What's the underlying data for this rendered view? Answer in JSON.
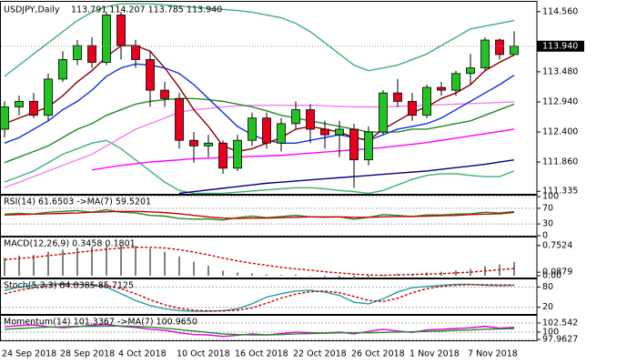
{
  "chart_data": [
    {
      "type": "candlestick",
      "title": "USDJPY,Daily",
      "ohlc_label": "113.791 114.207 113.785 113.940",
      "up_color": "#22c322",
      "down_color": "#e8001c",
      "categories": [
        "24 Sep 2018",
        null,
        null,
        null,
        "28 Sep 2018",
        null,
        null,
        null,
        "4 Oct 2018",
        null,
        null,
        null,
        "10 Oct 2018",
        null,
        null,
        null,
        "16 Oct 2018",
        null,
        null,
        null,
        "22 Oct 2018",
        null,
        null,
        null,
        "26 Oct 2018",
        null,
        null,
        null,
        "1 Nov 2018",
        null,
        null,
        null,
        "7 Nov 2018",
        null,
        null,
        null
      ],
      "values": [
        [
          112.45,
          112.95,
          112.3,
          112.85
        ],
        [
          112.85,
          113.05,
          112.7,
          112.95
        ],
        [
          112.95,
          113.1,
          112.65,
          112.7
        ],
        [
          112.7,
          113.45,
          112.6,
          113.35
        ],
        [
          113.35,
          113.85,
          113.3,
          113.7
        ],
        [
          113.7,
          114.05,
          113.6,
          113.95
        ],
        [
          113.95,
          114.1,
          113.55,
          113.65
        ],
        [
          113.65,
          114.55,
          113.6,
          114.5
        ],
        [
          114.5,
          114.55,
          113.7,
          113.95
        ],
        [
          113.95,
          114.05,
          113.55,
          113.7
        ],
        [
          113.7,
          113.85,
          112.85,
          113.15
        ],
        [
          113.15,
          113.3,
          112.85,
          113.0
        ],
        [
          113.0,
          113.1,
          112.1,
          112.25
        ],
        [
          112.25,
          112.4,
          111.85,
          112.15
        ],
        [
          112.15,
          112.35,
          111.95,
          112.2
        ],
        [
          112.2,
          112.25,
          111.65,
          111.75
        ],
        [
          111.75,
          112.35,
          111.7,
          112.25
        ],
        [
          112.25,
          112.75,
          112.15,
          112.65
        ],
        [
          112.65,
          112.75,
          112.1,
          112.2
        ],
        [
          112.2,
          112.65,
          112.05,
          112.55
        ],
        [
          112.55,
          112.95,
          112.45,
          112.8
        ],
        [
          112.8,
          112.9,
          112.2,
          112.45
        ],
        [
          112.45,
          112.6,
          112.1,
          112.35
        ],
        [
          112.35,
          112.6,
          111.95,
          112.45
        ],
        [
          112.45,
          112.55,
          111.4,
          111.9
        ],
        [
          111.9,
          112.5,
          111.8,
          112.4
        ],
        [
          112.4,
          113.15,
          112.35,
          113.1
        ],
        [
          113.1,
          113.35,
          112.85,
          112.95
        ],
        [
          112.95,
          113.1,
          112.6,
          112.7
        ],
        [
          112.7,
          113.25,
          112.65,
          113.2
        ],
        [
          113.2,
          113.3,
          113.05,
          113.15
        ],
        [
          113.15,
          113.5,
          113.05,
          113.45
        ],
        [
          113.45,
          113.8,
          113.25,
          113.55
        ],
        [
          113.55,
          114.1,
          113.5,
          114.05
        ],
        [
          114.05,
          114.08,
          113.7,
          113.79
        ],
        [
          113.791,
          114.207,
          113.785,
          113.94
        ]
      ],
      "series": [
        {
          "color": "#3cb371",
          "values": [
            113.4,
            113.6,
            113.8,
            114.0,
            114.2,
            114.4,
            114.55,
            114.65,
            114.7,
            114.7,
            114.7,
            114.68,
            114.66,
            114.64,
            114.62,
            114.6,
            114.58,
            114.55,
            114.5,
            114.45,
            114.35,
            114.2,
            114.0,
            113.8,
            113.6,
            113.5,
            113.55,
            113.6,
            113.7,
            113.8,
            113.95,
            114.1,
            114.25,
            114.3,
            114.35,
            114.4
          ]
        },
        {
          "color": "#3cb371",
          "values": [
            111.5,
            111.6,
            111.7,
            111.85,
            112.0,
            112.1,
            112.2,
            112.25,
            112.1,
            111.9,
            111.7,
            111.5,
            111.35,
            111.3,
            111.3,
            111.3,
            111.32,
            111.34,
            111.36,
            111.38,
            111.4,
            111.4,
            111.38,
            111.35,
            111.33,
            111.3,
            111.35,
            111.45,
            111.55,
            111.62,
            111.65,
            111.65,
            111.62,
            111.6,
            111.6,
            111.7
          ]
        },
        {
          "color": "#ee82ee",
          "values": [
            111.4,
            111.5,
            111.6,
            111.7,
            111.8,
            111.9,
            112.0,
            112.15,
            112.3,
            112.45,
            112.55,
            112.65,
            112.75,
            112.8,
            112.82,
            112.85,
            112.87,
            112.88,
            112.88,
            112.88,
            112.88,
            112.88,
            112.87,
            112.86,
            112.85,
            112.85,
            112.85,
            112.86,
            112.87,
            112.88,
            112.89,
            112.9,
            112.91,
            112.92,
            112.93,
            112.94
          ]
        },
        {
          "color": "#ff00ff",
          "values": [
            null,
            null,
            null,
            null,
            null,
            null,
            111.72,
            111.76,
            111.8,
            111.83,
            111.86,
            111.88,
            111.9,
            111.92,
            111.93,
            111.94,
            111.95,
            111.96,
            111.97,
            111.98,
            112.0,
            112.02,
            112.04,
            112.06,
            112.08,
            112.1,
            112.12,
            112.15,
            112.18,
            112.21,
            112.25,
            112.29,
            112.33,
            112.37,
            112.41,
            112.45
          ]
        },
        {
          "color": "#000080",
          "values": [
            null,
            null,
            null,
            null,
            null,
            null,
            null,
            null,
            null,
            null,
            null,
            null,
            111.3,
            111.33,
            111.36,
            111.39,
            111.42,
            111.45,
            111.48,
            111.5,
            111.52,
            111.54,
            111.56,
            111.58,
            111.6,
            111.62,
            111.64,
            111.66,
            111.68,
            111.7,
            111.73,
            111.76,
            111.79,
            111.82,
            111.86,
            111.9
          ]
        },
        {
          "color": "#228b22",
          "values": [
            111.85,
            111.95,
            112.05,
            112.15,
            112.3,
            112.45,
            112.55,
            112.7,
            112.8,
            112.9,
            112.95,
            112.98,
            113.0,
            113.0,
            112.98,
            112.95,
            112.9,
            112.85,
            112.78,
            112.7,
            112.65,
            112.6,
            112.55,
            112.5,
            112.45,
            112.4,
            112.4,
            112.4,
            112.45,
            112.45,
            112.5,
            112.55,
            112.6,
            112.7,
            112.8,
            112.9
          ]
        },
        {
          "color": "#1030e0",
          "values": [
            112.2,
            112.3,
            112.45,
            112.6,
            112.8,
            112.95,
            113.15,
            113.4,
            113.55,
            113.62,
            113.6,
            113.55,
            113.45,
            113.25,
            113.0,
            112.75,
            112.5,
            112.35,
            112.25,
            112.2,
            112.2,
            112.25,
            112.3,
            112.35,
            112.3,
            112.25,
            112.35,
            112.45,
            112.5,
            112.55,
            112.65,
            112.8,
            112.95,
            113.1,
            113.25,
            113.42
          ]
        },
        {
          "color": "#8b0000",
          "values": [
            112.55,
            112.65,
            112.75,
            112.85,
            113.05,
            113.3,
            113.5,
            113.75,
            113.95,
            113.95,
            113.85,
            113.55,
            113.2,
            112.8,
            112.5,
            112.15,
            112.05,
            112.1,
            112.2,
            112.3,
            112.45,
            112.5,
            112.45,
            112.4,
            112.3,
            112.25,
            112.45,
            112.6,
            112.75,
            112.85,
            113.0,
            113.1,
            113.25,
            113.5,
            113.65,
            113.78
          ]
        }
      ],
      "last_price": {
        "value": 113.94,
        "label": "113.940"
      },
      "ylim": [
        111.29,
        114.72
      ],
      "yticks": [
        {
          "value": 114.56,
          "label": "114.560"
        },
        {
          "value": 113.48,
          "label": "113.480"
        },
        {
          "value": 112.94,
          "label": "112.940"
        },
        {
          "value": 112.4,
          "label": "112.400"
        },
        {
          "value": 111.86,
          "label": "111.860"
        },
        {
          "value": 111.335,
          "label": "111.335"
        }
      ],
      "grid": false
    },
    {
      "type": "line",
      "title": "RSI(14) 61.6503 ->MA(7) 59.5201",
      "series": [
        {
          "color": "#228b22",
          "values": [
            55,
            57,
            55,
            60,
            62,
            64,
            60,
            66,
            60,
            58,
            52,
            50,
            44,
            42,
            43,
            40,
            46,
            50,
            46,
            49,
            52,
            48,
            47,
            48,
            42,
            47,
            54,
            52,
            49,
            53,
            53,
            55,
            56,
            60,
            58,
            61.6503
          ]
        },
        {
          "color": "#cc0000",
          "values": [
            53,
            54,
            55,
            56,
            57,
            58,
            60,
            61,
            62,
            62,
            61,
            59,
            56,
            52,
            48,
            45,
            44,
            45,
            45,
            46,
            47,
            48,
            48,
            48,
            47,
            47,
            48,
            49,
            49,
            50,
            51,
            52,
            54,
            55,
            56,
            59.5201
          ]
        }
      ],
      "ylim": [
        0,
        100
      ],
      "yticks": [
        100,
        70,
        30,
        0
      ],
      "grid": true
    },
    {
      "type": "bar",
      "title": "MACD(12,26,9) 0.3458 0.1801",
      "series": [
        {
          "type": "bar",
          "color": "#808080",
          "values": [
            0.45,
            0.5,
            0.52,
            0.6,
            0.65,
            0.7,
            0.72,
            0.75,
            0.76,
            0.74,
            0.68,
            0.6,
            0.48,
            0.35,
            0.25,
            0.13,
            0.08,
            0.06,
            0.03,
            0.02,
            0.03,
            0.0,
            -0.03,
            -0.04,
            -0.08,
            -0.06,
            0.02,
            0.05,
            0.05,
            0.08,
            0.1,
            0.13,
            0.17,
            0.24,
            0.28,
            0.3458
          ]
        },
        {
          "type": "line",
          "dashed": true,
          "color": "#cc0000",
          "values": [
            0.4,
            0.43,
            0.46,
            0.5,
            0.54,
            0.58,
            0.62,
            0.66,
            0.69,
            0.71,
            0.71,
            0.69,
            0.65,
            0.59,
            0.52,
            0.44,
            0.37,
            0.31,
            0.26,
            0.21,
            0.17,
            0.14,
            0.1,
            0.07,
            0.04,
            0.02,
            0.01,
            0.02,
            0.03,
            0.04,
            0.05,
            0.07,
            0.09,
            0.12,
            0.15,
            0.1801
          ]
        }
      ],
      "ylim": [
        -0.045,
        0.93
      ],
      "yticks": [
        0.7524,
        0.0879,
        {
          "value": 0,
          "label": "0.00"
        }
      ],
      "grid": false
    },
    {
      "type": "line",
      "title": "Stoch(5,3,3) 84.8385 85.7125",
      "series": [
        {
          "color": "#20a0a0",
          "values": [
            70,
            80,
            85,
            88,
            90,
            88,
            85,
            80,
            60,
            40,
            25,
            15,
            10,
            8,
            8,
            10,
            15,
            30,
            50,
            60,
            68,
            70,
            65,
            55,
            35,
            30,
            45,
            65,
            78,
            82,
            85,
            88,
            88,
            85,
            84,
            84.8385
          ]
        },
        {
          "dashed": true,
          "color": "#cc0000",
          "values": [
            60,
            70,
            78,
            84,
            87,
            88,
            87,
            84,
            75,
            60,
            42,
            27,
            17,
            11,
            9,
            9,
            11,
            18,
            32,
            47,
            59,
            66,
            68,
            63,
            52,
            40,
            37,
            47,
            63,
            75,
            82,
            85,
            87,
            87,
            86,
            85.7125
          ]
        }
      ],
      "ylim": [
        0,
        100
      ],
      "yticks": [
        80,
        20
      ],
      "grid": true
    },
    {
      "type": "line",
      "title": "Momentum(14) 101.3367 ->MA(7) 100.9650",
      "series": [
        {
          "color": "#dd00dd",
          "values": [
            101.5,
            101.8,
            102,
            101.5,
            101.2,
            101.5,
            101.9,
            102.2,
            101.6,
            101.3,
            100.8,
            100.5,
            99.8,
            99.3,
            99.2,
            98.8,
            99.1,
            99.5,
            99.2,
            99.6,
            100,
            99.8,
            99.7,
            100,
            99.5,
            100.2,
            100.8,
            100.3,
            99.9,
            100.6,
            100.8,
            101.0,
            101.2,
            101.6,
            101.1,
            101.3367
          ]
        },
        {
          "color": "#228b22",
          "values": [
            100.8,
            101,
            101.2,
            101.4,
            101.5,
            101.6,
            101.6,
            101.7,
            101.7,
            101.6,
            101.4,
            101.1,
            100.7,
            100.3,
            99.9,
            99.5,
            99.3,
            99.2,
            99.2,
            99.3,
            99.5,
            99.6,
            99.7,
            99.8,
            99.8,
            99.8,
            99.9,
            100.0,
            100.1,
            100.2,
            100.3,
            100.5,
            100.6,
            100.8,
            100.9,
            100.965
          ]
        }
      ],
      "ylim": [
        97.7,
        104.3
      ],
      "yticks": [
        102.542,
        100,
        97.9627
      ],
      "grid": true
    }
  ]
}
